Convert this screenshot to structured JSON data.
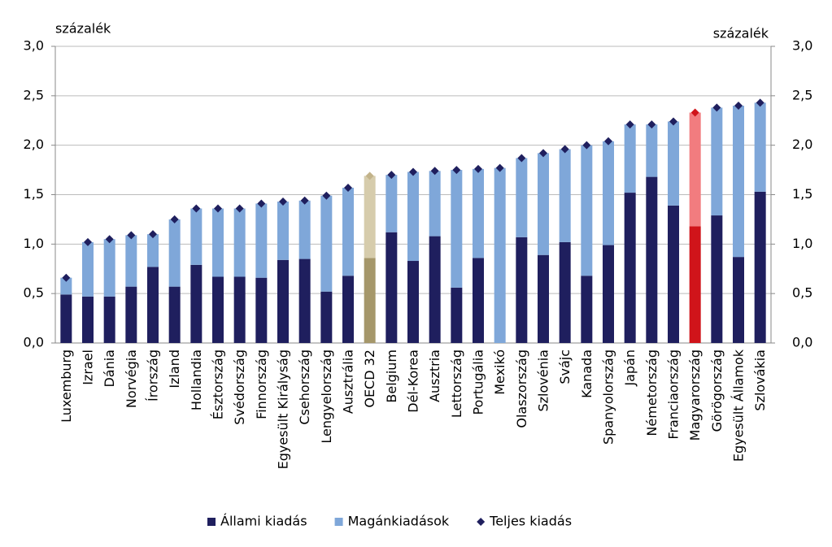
{
  "chart_data": {
    "type": "stacked_bar",
    "ylabel": "százalék",
    "y2label": "százalék",
    "categories": [
      "Luxemburg",
      "Izrael",
      "Dánia",
      "Norvégia",
      "Írország",
      "Izland",
      "Hollandia",
      "Észtország",
      "Svédország",
      "Finnország",
      "Egyesült Királyság",
      "Csehország",
      "Lengyelország",
      "Ausztrália",
      "OECD 32",
      "Belgium",
      "Dél-Korea",
      "Ausztria",
      "Lettország",
      "Portugália",
      "Mexikó",
      "Olaszország",
      "Szlovénia",
      "Svájc",
      "Kanada",
      "Spanyolország",
      "Japán",
      "Németország",
      "Franciaország",
      "Magyarország",
      "Görögország",
      "Egyesült Államok",
      "Szlovákia"
    ],
    "series": [
      {
        "name": "Állami kiadás",
        "color": "#1f1f5e",
        "colors": [
          "#1f1f5e",
          "#1f1f5e",
          "#1f1f5e",
          "#1f1f5e",
          "#1f1f5e",
          "#1f1f5e",
          "#1f1f5e",
          "#1f1f5e",
          "#1f1f5e",
          "#1f1f5e",
          "#1f1f5e",
          "#1f1f5e",
          "#1f1f5e",
          "#1f1f5e",
          "#a5976a",
          "#1f1f5e",
          "#1f1f5e",
          "#1f1f5e",
          "#1f1f5e",
          "#1f1f5e",
          "#1f1f5e",
          "#1f1f5e",
          "#1f1f5e",
          "#1f1f5e",
          "#1f1f5e",
          "#1f1f5e",
          "#1f1f5e",
          "#1f1f5e",
          "#1f1f5e",
          "#d0141a",
          "#1f1f5e",
          "#1f1f5e",
          "#1f1f5e"
        ],
        "values": [
          0.49,
          0.47,
          0.47,
          0.57,
          0.77,
          0.57,
          0.79,
          0.67,
          0.67,
          0.66,
          0.84,
          0.85,
          0.52,
          0.68,
          0.86,
          1.12,
          0.83,
          1.08,
          0.56,
          0.86,
          null,
          1.07,
          0.89,
          1.02,
          0.68,
          0.99,
          1.52,
          1.68,
          1.39,
          1.18,
          1.29,
          0.87,
          1.53
        ]
      },
      {
        "name": "Magánkiadások",
        "color": "#7fa7d9",
        "colors": [
          "#7fa7d9",
          "#7fa7d9",
          "#7fa7d9",
          "#7fa7d9",
          "#7fa7d9",
          "#7fa7d9",
          "#7fa7d9",
          "#7fa7d9",
          "#7fa7d9",
          "#7fa7d9",
          "#7fa7d9",
          "#7fa7d9",
          "#7fa7d9",
          "#7fa7d9",
          "#d6ccac",
          "#7fa7d9",
          "#7fa7d9",
          "#7fa7d9",
          "#7fa7d9",
          "#7fa7d9",
          "#7fa7d9",
          "#7fa7d9",
          "#7fa7d9",
          "#7fa7d9",
          "#7fa7d9",
          "#7fa7d9",
          "#7fa7d9",
          "#7fa7d9",
          "#7fa7d9",
          "#f27c7f",
          "#7fa7d9",
          "#7fa7d9",
          "#7fa7d9"
        ],
        "values": [
          0.17,
          0.55,
          0.58,
          0.52,
          0.33,
          0.68,
          0.57,
          0.69,
          0.69,
          0.75,
          0.59,
          0.59,
          0.97,
          0.89,
          0.83,
          0.58,
          0.9,
          0.66,
          1.19,
          0.9,
          1.77,
          0.8,
          1.03,
          0.94,
          1.32,
          1.05,
          0.69,
          0.53,
          0.85,
          1.15,
          1.09,
          1.53,
          0.9
        ]
      },
      {
        "name": "Teljes kiadás",
        "color": "#1f1f5e",
        "marker": "diamond",
        "colors": [
          "#1f1f5e",
          "#1f1f5e",
          "#1f1f5e",
          "#1f1f5e",
          "#1f1f5e",
          "#1f1f5e",
          "#1f1f5e",
          "#1f1f5e",
          "#1f1f5e",
          "#1f1f5e",
          "#1f1f5e",
          "#1f1f5e",
          "#1f1f5e",
          "#1f1f5e",
          "#c2b38a",
          "#1f1f5e",
          "#1f1f5e",
          "#1f1f5e",
          "#1f1f5e",
          "#1f1f5e",
          "#1f1f5e",
          "#1f1f5e",
          "#1f1f5e",
          "#1f1f5e",
          "#1f1f5e",
          "#1f1f5e",
          "#1f1f5e",
          "#1f1f5e",
          "#1f1f5e",
          "#d0141a",
          "#1f1f5e",
          "#1f1f5e",
          "#1f1f5e"
        ],
        "values": [
          0.66,
          1.02,
          1.05,
          1.09,
          1.1,
          1.25,
          1.36,
          1.36,
          1.36,
          1.41,
          1.43,
          1.44,
          1.49,
          1.57,
          1.69,
          1.7,
          1.73,
          1.74,
          1.75,
          1.76,
          1.77,
          1.87,
          1.92,
          1.96,
          2.0,
          2.04,
          2.21,
          2.21,
          2.24,
          2.33,
          2.38,
          2.4,
          2.43
        ]
      }
    ],
    "ylim": [
      0,
      3
    ],
    "y2lim": [
      0,
      3
    ],
    "yticks": [
      {
        "value": 0,
        "label": "0,0"
      },
      {
        "value": 0.5,
        "label": "0,5"
      },
      {
        "value": 1,
        "label": "1,0"
      },
      {
        "value": 1.5,
        "label": "1,5"
      },
      {
        "value": 2,
        "label": "2,0"
      },
      {
        "value": 2.5,
        "label": "2,5"
      },
      {
        "value": 3,
        "label": "3,0"
      }
    ],
    "y2ticks": [
      {
        "value": 0,
        "label": "0,0"
      },
      {
        "value": 0.5,
        "label": "0,5"
      },
      {
        "value": 1,
        "label": "1,0"
      },
      {
        "value": 1.5,
        "label": "1,5"
      },
      {
        "value": 2,
        "label": "2,0"
      },
      {
        "value": 2.5,
        "label": "2,5"
      },
      {
        "value": 3,
        "label": "3,0"
      }
    ],
    "grid": true,
    "legend": "bottom"
  }
}
